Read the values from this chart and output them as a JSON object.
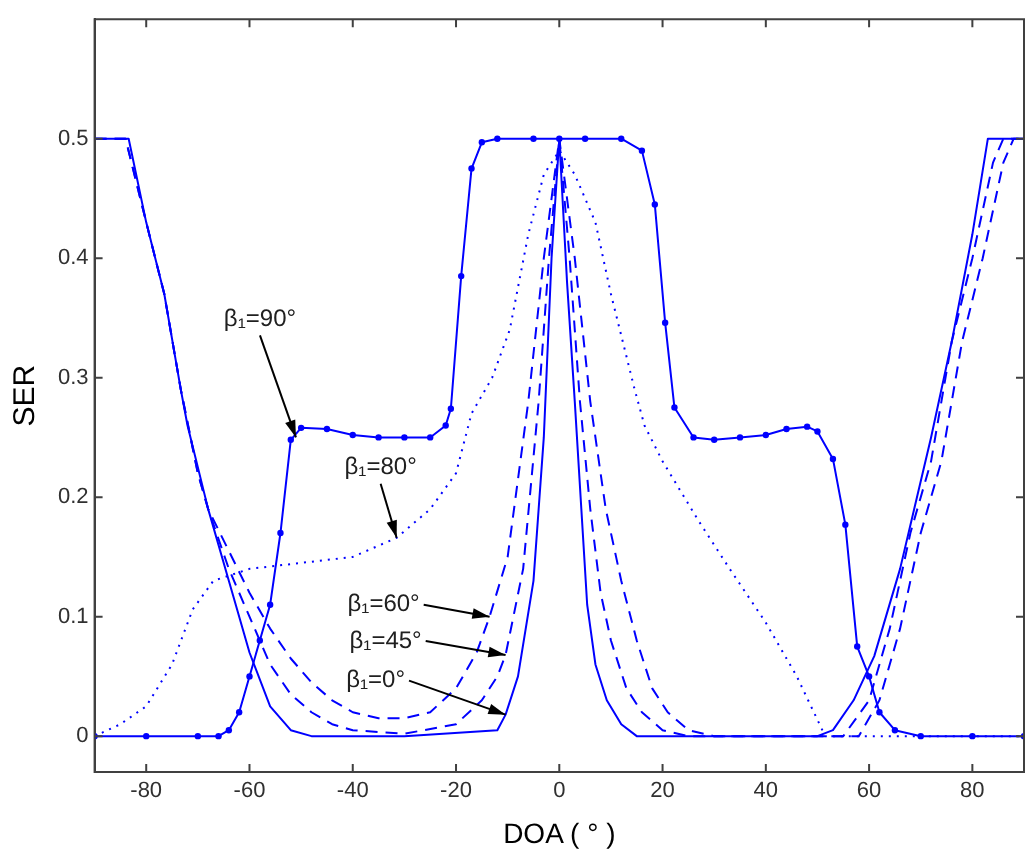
{
  "chart_data": {
    "type": "line",
    "xlabel": "DOA ( ° )",
    "ylabel": "SER",
    "xlim": [
      -90,
      90
    ],
    "xticks": [
      -80,
      -60,
      -40,
      -20,
      0,
      20,
      40,
      60,
      80
    ],
    "ylim": [
      -0.03,
      0.6
    ],
    "yticks": [
      0,
      0.1,
      0.2,
      0.3,
      0.4,
      0.5
    ],
    "grid": false,
    "legend": false,
    "series": [
      {
        "color": "#0000ff",
        "marker": "circle",
        "line_style": "solid",
        "x": [
          -90,
          -80,
          -70,
          -66,
          -64,
          -62,
          -60,
          -58,
          -56,
          -54,
          -52,
          -50,
          -45,
          -40,
          -35,
          -30,
          -25,
          -22,
          -21,
          -19,
          -17,
          -15,
          -12,
          -5,
          0,
          5,
          12,
          16,
          18.5,
          20.5,
          22.3,
          26,
          30,
          35,
          40,
          44,
          48,
          50,
          53,
          55.4,
          57.7,
          60,
          62,
          65,
          70,
          80,
          90
        ],
        "values": [
          0,
          0,
          0,
          0,
          0.005,
          0.02,
          0.05,
          0.08,
          0.11,
          0.17,
          0.248,
          0.258,
          0.257,
          0.252,
          0.25,
          0.25,
          0.25,
          0.26,
          0.274,
          0.385,
          0.475,
          0.497,
          0.5,
          0.5,
          0.5,
          0.5,
          0.5,
          0.49,
          0.445,
          0.346,
          0.275,
          0.25,
          0.248,
          0.25,
          0.252,
          0.257,
          0.259,
          0.255,
          0.232,
          0.177,
          0.075,
          0.05,
          0.02,
          0.005,
          0,
          0,
          0
        ]
      },
      {
        "color": "#0000ff",
        "marker": "none",
        "line_style": "dotted",
        "x": [
          -90,
          -85,
          -80,
          -75,
          -71,
          -67,
          -60,
          -50,
          -40,
          -31.5,
          -25,
          -20,
          -17,
          -13,
          -9.6,
          -6,
          -3,
          0,
          3,
          7,
          10,
          14.6,
          16.5,
          20,
          27,
          33,
          40,
          46,
          51.5,
          60,
          70,
          80,
          90
        ],
        "values": [
          0,
          0.01,
          0.025,
          0.06,
          0.106,
          0.13,
          0.14,
          0.145,
          0.15,
          0.166,
          0.19,
          0.22,
          0.27,
          0.3,
          0.34,
          0.42,
          0.47,
          0.49,
          0.47,
          0.43,
          0.37,
          0.29,
          0.26,
          0.23,
          0.18,
          0.14,
          0.095,
          0.05,
          0,
          0,
          0,
          0,
          0
        ]
      },
      {
        "color": "#0000ff",
        "marker": "none",
        "line_style": "dashed",
        "x": [
          -90,
          -84,
          -80,
          -76.5,
          -73.3,
          -70,
          -68,
          -64,
          -60,
          -56,
          -52,
          -48,
          -44,
          -40,
          -30,
          -20,
          -15,
          -12,
          -10.4,
          -7,
          -4,
          -2,
          0,
          2,
          4,
          6,
          8,
          10,
          13,
          16,
          20,
          25,
          40,
          55,
          60,
          64,
          68,
          72,
          76,
          80,
          84,
          86,
          90
        ],
        "values": [
          0.5,
          0.5,
          0.43,
          0.37,
          0.29,
          0.22,
          0.19,
          0.14,
          0.1,
          0.06,
          0.035,
          0.02,
          0.01,
          0.005,
          0.002,
          0.01,
          0.03,
          0.05,
          0.068,
          0.14,
          0.28,
          0.4,
          0.5,
          0.4,
          0.28,
          0.19,
          0.12,
          0.08,
          0.04,
          0.02,
          0.005,
          0,
          0,
          0,
          0.03,
          0.09,
          0.17,
          0.23,
          0.33,
          0.4,
          0.48,
          0.5,
          0.5
        ]
      },
      {
        "color": "#0000ff",
        "marker": "none",
        "line_style": "dashed",
        "x": [
          -90,
          -84,
          -80,
          -76.5,
          -73.3,
          -70,
          -68,
          -64,
          -60,
          -56,
          -52,
          -48,
          -44,
          -40,
          -35,
          -30,
          -25,
          -20,
          -16,
          -13.5,
          -10,
          -6,
          -3,
          0,
          3,
          6,
          9,
          12,
          15,
          18,
          21,
          25,
          30,
          45,
          58,
          62,
          66,
          70,
          74,
          78,
          82,
          86,
          88,
          90
        ],
        "values": [
          0.5,
          0.5,
          0.43,
          0.37,
          0.29,
          0.22,
          0.19,
          0.155,
          0.12,
          0.09,
          0.065,
          0.045,
          0.03,
          0.02,
          0.015,
          0.015,
          0.02,
          0.04,
          0.07,
          0.1,
          0.15,
          0.28,
          0.4,
          0.5,
          0.4,
          0.28,
          0.19,
          0.13,
          0.08,
          0.04,
          0.02,
          0.005,
          0,
          0,
          0,
          0.03,
          0.09,
          0.17,
          0.23,
          0.33,
          0.4,
          0.48,
          0.5,
          0.5
        ]
      },
      {
        "color": "#0000ff",
        "marker": "none",
        "line_style": "solid",
        "x": [
          -90,
          -83.4,
          -80,
          -76.5,
          -73.3,
          -72,
          -68,
          -64,
          -60,
          -56,
          -52,
          -48,
          -30,
          -12,
          -10.4,
          -8,
          -5,
          -3,
          -1.5,
          0,
          1.5,
          3,
          5.4,
          7,
          9.2,
          12,
          15,
          30,
          50,
          53,
          57,
          61,
          66,
          72,
          76,
          80,
          83,
          90
        ],
        "values": [
          0.5,
          0.5,
          0.43,
          0.37,
          0.29,
          0.26,
          0.19,
          0.13,
          0.07,
          0.025,
          0.005,
          0,
          0,
          0.005,
          0.018,
          0.05,
          0.13,
          0.25,
          0.4,
          0.5,
          0.38,
          0.28,
          0.11,
          0.06,
          0.03,
          0.01,
          0,
          0,
          0,
          0.005,
          0.03,
          0.067,
          0.14,
          0.25,
          0.33,
          0.42,
          0.5,
          0.5
        ]
      }
    ],
    "annotations": [
      {
        "text": "β₁=90°",
        "x": -51,
        "y": 0.25
      },
      {
        "text": "β₁=80°",
        "x": -31.5,
        "y": 0.166
      },
      {
        "text": "β₁=60°",
        "x": -13.5,
        "y": 0.1
      },
      {
        "text": "β₁=45°",
        "x": -10.4,
        "y": 0.068
      },
      {
        "text": "β₁=0°",
        "x": -10.4,
        "y": 0.018
      }
    ]
  }
}
